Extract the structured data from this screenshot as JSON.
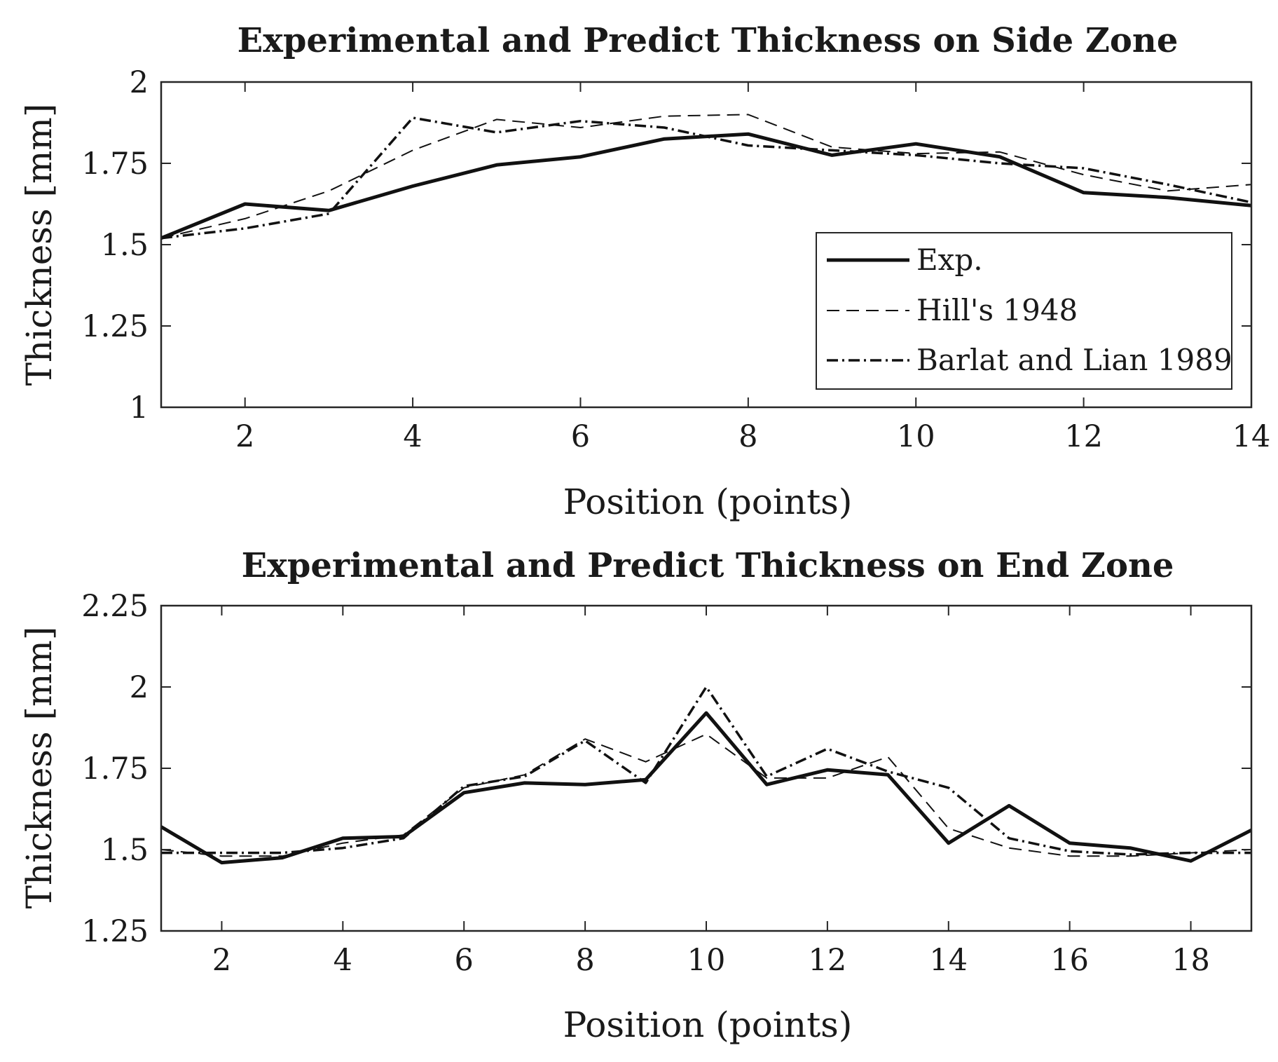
{
  "colors": {
    "line": "#111111",
    "axis": "#262626",
    "background": "#ffffff"
  },
  "chart_data": [
    {
      "type": "line",
      "title": "Experimental and Predict Thickness on Side Zone",
      "xlabel": "Position (points)",
      "ylabel": "Thickness [mm]",
      "xlim": [
        1,
        14
      ],
      "ylim": [
        1,
        2
      ],
      "xticks": [
        2,
        4,
        6,
        8,
        10,
        12,
        14
      ],
      "xtick_labels": [
        "2",
        "4",
        "6",
        "8",
        "10",
        "12",
        "14"
      ],
      "yticks": [
        1,
        1.25,
        1.5,
        1.75,
        2
      ],
      "ytick_labels": [
        "1",
        "1.25",
        "1.5",
        "1.75",
        "2"
      ],
      "legend": "bottom-right",
      "x": [
        1,
        2,
        3,
        4,
        5,
        6,
        7,
        8,
        9,
        10,
        11,
        12,
        13,
        14
      ],
      "series": [
        {
          "name": "Exp.",
          "style": "solid",
          "values": [
            1.52,
            1.625,
            1.605,
            1.68,
            1.745,
            1.77,
            1.825,
            1.84,
            1.775,
            1.81,
            1.77,
            1.66,
            1.645,
            1.62
          ]
        },
        {
          "name": "Hill's 1948",
          "style": "dashed",
          "values": [
            1.52,
            1.58,
            1.665,
            1.79,
            1.885,
            1.86,
            1.895,
            1.9,
            1.8,
            1.78,
            1.785,
            1.715,
            1.665,
            1.685
          ]
        },
        {
          "name": "Barlat and Lian 1989",
          "style": "dashdot",
          "values": [
            1.52,
            1.55,
            1.595,
            1.89,
            1.845,
            1.88,
            1.86,
            1.805,
            1.79,
            1.775,
            1.75,
            1.735,
            1.685,
            1.63
          ]
        }
      ]
    },
    {
      "type": "line",
      "title": "Experimental and Predict Thickness on End Zone",
      "xlabel": "Position (points)",
      "ylabel": "Thickness [mm]",
      "xlim": [
        1,
        19
      ],
      "ylim": [
        1.25,
        2.25
      ],
      "xticks": [
        2,
        4,
        6,
        8,
        10,
        12,
        14,
        16,
        18
      ],
      "xtick_labels": [
        "2",
        "4",
        "6",
        "8",
        "10",
        "12",
        "14",
        "16",
        "18"
      ],
      "yticks": [
        1.25,
        1.5,
        1.75,
        2,
        2.25
      ],
      "ytick_labels": [
        "1.25",
        "1.5",
        "1.75",
        "2",
        "2.25"
      ],
      "x": [
        1,
        2,
        3,
        4,
        5,
        6,
        7,
        8,
        9,
        10,
        11,
        12,
        13,
        14,
        15,
        16,
        17,
        18,
        19
      ],
      "series": [
        {
          "name": "Exp.",
          "style": "solid",
          "values": [
            1.57,
            1.46,
            1.475,
            1.535,
            1.54,
            1.675,
            1.705,
            1.7,
            1.715,
            1.92,
            1.7,
            1.745,
            1.73,
            1.52,
            1.635,
            1.52,
            1.505,
            1.465,
            1.56
          ]
        },
        {
          "name": "Hill's 1948",
          "style": "dashed",
          "values": [
            1.5,
            1.48,
            1.48,
            1.52,
            1.545,
            1.69,
            1.73,
            1.84,
            1.77,
            1.855,
            1.72,
            1.72,
            1.785,
            1.565,
            1.505,
            1.48,
            1.48,
            1.49,
            1.5
          ]
        },
        {
          "name": "Barlat and Lian 1989",
          "style": "dashdot",
          "values": [
            1.49,
            1.49,
            1.49,
            1.505,
            1.535,
            1.695,
            1.725,
            1.835,
            1.705,
            2.0,
            1.725,
            1.81,
            1.74,
            1.69,
            1.535,
            1.495,
            1.485,
            1.49,
            1.49
          ]
        }
      ]
    }
  ]
}
